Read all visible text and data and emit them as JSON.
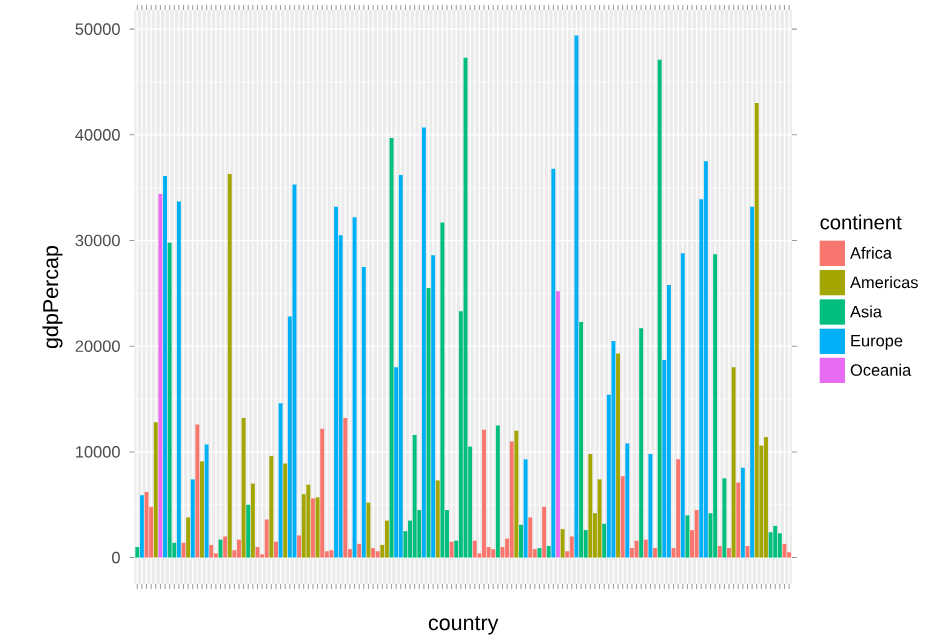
{
  "chart_data": {
    "type": "bar",
    "xlabel": "country",
    "ylabel": "gdpPercap",
    "legend_title": "continent",
    "legend": "right",
    "grid": true,
    "categories": [
      null,
      null,
      null,
      null,
      null,
      null,
      null,
      null,
      null,
      null,
      null,
      null,
      null,
      null,
      null,
      null,
      null,
      null,
      null,
      null,
      null,
      null,
      null,
      null,
      null,
      null,
      null,
      null,
      null,
      null,
      null,
      null,
      null,
      null,
      null,
      null,
      null,
      null,
      null,
      null,
      null,
      null,
      null,
      null,
      null,
      null,
      null,
      null,
      null,
      null,
      null,
      null,
      null,
      null,
      null,
      null,
      null,
      null,
      null,
      null,
      null,
      null,
      null,
      null,
      null,
      null,
      null,
      null,
      null,
      null,
      null,
      null,
      null,
      null,
      null,
      null,
      null,
      null,
      null,
      null,
      null,
      null,
      null,
      null,
      null,
      null,
      null,
      null,
      null,
      null,
      null,
      null,
      null,
      null,
      null,
      null,
      null,
      null,
      null,
      null,
      null,
      null,
      null,
      null,
      null,
      null,
      null,
      null,
      null,
      null,
      null,
      null,
      null,
      null,
      null,
      null,
      null,
      null,
      null,
      null,
      null,
      null,
      null,
      null,
      null,
      null,
      null,
      null,
      null,
      null,
      null,
      null,
      null,
      null,
      null,
      null,
      null,
      null,
      null,
      null,
      null,
      null
    ],
    "ylim": [
      -2500,
      51800
    ],
    "yticks": [
      0,
      10000,
      20000,
      30000,
      40000,
      50000
    ],
    "series": [
      {
        "name": "Africa",
        "color": "#f8766d",
        "values": [
          null,
          null,
          6200,
          4800,
          null,
          null,
          null,
          null,
          null,
          null,
          1400,
          null,
          null,
          12600,
          null,
          null,
          1200,
          400,
          null,
          2000,
          null,
          700,
          1700,
          null,
          null,
          null,
          1000,
          300,
          3600,
          null,
          1500,
          null,
          null,
          null,
          null,
          2100,
          null,
          null,
          5600,
          null,
          12200,
          600,
          700,
          null,
          null,
          13200,
          800,
          null,
          1300,
          null,
          null,
          900,
          600,
          null,
          null,
          null,
          null,
          null,
          null,
          null,
          null,
          null,
          null,
          null,
          null,
          null,
          null,
          null,
          1500,
          null,
          null,
          null,
          null,
          1600,
          400,
          12100,
          1000,
          800,
          null,
          1000,
          1800,
          11000,
          null,
          null,
          null,
          3800,
          800,
          null,
          4800,
          null,
          null,
          null,
          null,
          600,
          2000,
          null,
          null,
          null,
          null,
          null,
          null,
          null,
          null,
          null,
          null,
          7700,
          null,
          900,
          1600,
          null,
          1700,
          null,
          900,
          null,
          null,
          null,
          900,
          9300,
          null,
          null,
          2600,
          4500,
          null,
          null,
          null,
          null,
          1100,
          null,
          900,
          null,
          7100,
          null,
          1100,
          null,
          null,
          null,
          null,
          null,
          null,
          null,
          1300,
          500
        ]
      },
      {
        "name": "Americas",
        "color": "#a3a500",
        "values": [
          null,
          null,
          null,
          null,
          12800,
          null,
          null,
          null,
          null,
          null,
          null,
          3800,
          null,
          null,
          9100,
          null,
          null,
          null,
          null,
          null,
          36300,
          null,
          null,
          13200,
          null,
          7000,
          null,
          null,
          null,
          9600,
          null,
          null,
          8900,
          null,
          null,
          null,
          6000,
          6900,
          null,
          5700,
          null,
          null,
          null,
          null,
          null,
          null,
          null,
          null,
          null,
          null,
          5200,
          null,
          null,
          1200,
          3500,
          null,
          null,
          null,
          null,
          null,
          null,
          null,
          null,
          null,
          null,
          7300,
          null,
          null,
          null,
          null,
          null,
          null,
          null,
          null,
          null,
          null,
          null,
          null,
          null,
          null,
          null,
          null,
          12000,
          null,
          null,
          null,
          null,
          null,
          null,
          null,
          null,
          null,
          2700,
          null,
          null,
          null,
          null,
          null,
          9800,
          4200,
          7400,
          null,
          null,
          null,
          19300,
          null,
          null,
          null,
          null,
          null,
          null,
          null,
          null,
          null,
          null,
          null,
          null,
          null,
          null,
          null,
          null,
          null,
          null,
          null,
          null,
          null,
          null,
          null,
          null,
          18000,
          null,
          null,
          null,
          null,
          43000,
          10600,
          11400,
          null,
          null,
          null,
          null,
          null
        ]
      },
      {
        "name": "Asia",
        "color": "#00bf7d",
        "values": [
          1000,
          null,
          null,
          null,
          null,
          null,
          null,
          29800,
          1400,
          null,
          null,
          null,
          null,
          null,
          null,
          null,
          null,
          null,
          1700,
          null,
          null,
          null,
          null,
          null,
          5000,
          null,
          null,
          null,
          null,
          null,
          null,
          null,
          null,
          null,
          null,
          null,
          null,
          null,
          null,
          null,
          null,
          null,
          null,
          null,
          null,
          null,
          null,
          null,
          null,
          null,
          null,
          null,
          null,
          null,
          null,
          39700,
          null,
          null,
          2500,
          3500,
          11600,
          4500,
          null,
          25500,
          null,
          null,
          31700,
          4500,
          null,
          1600,
          23300,
          47300,
          10500,
          null,
          null,
          null,
          null,
          null,
          12500,
          null,
          null,
          null,
          null,
          3100,
          null,
          null,
          null,
          900,
          null,
          1100,
          null,
          null,
          null,
          null,
          null,
          null,
          22300,
          2600,
          null,
          null,
          null,
          3200,
          null,
          null,
          null,
          null,
          null,
          null,
          null,
          21700,
          null,
          null,
          null,
          47100,
          null,
          null,
          null,
          null,
          null,
          4000,
          null,
          null,
          null,
          null,
          4200,
          28700,
          null,
          7500,
          null,
          null,
          null,
          null,
          null,
          null,
          null,
          null,
          null,
          2400,
          3000,
          2300,
          null,
          null
        ]
      },
      {
        "name": "Europe",
        "color": "#00b0f6",
        "values": [
          null,
          5900,
          null,
          null,
          null,
          null,
          36100,
          null,
          null,
          33700,
          null,
          null,
          7400,
          null,
          null,
          10700,
          null,
          null,
          null,
          null,
          null,
          null,
          null,
          null,
          null,
          null,
          null,
          null,
          null,
          null,
          null,
          14600,
          null,
          22800,
          35300,
          null,
          null,
          null,
          null,
          null,
          null,
          null,
          null,
          33200,
          30500,
          null,
          null,
          32200,
          null,
          27500,
          null,
          null,
          null,
          null,
          null,
          null,
          18000,
          36200,
          null,
          null,
          null,
          null,
          40700,
          null,
          28600,
          null,
          null,
          null,
          null,
          null,
          null,
          null,
          null,
          null,
          null,
          null,
          null,
          null,
          null,
          null,
          null,
          null,
          null,
          null,
          9300,
          null,
          null,
          null,
          null,
          null,
          36800,
          null,
          null,
          null,
          null,
          49400,
          null,
          null,
          null,
          null,
          null,
          null,
          15400,
          20500,
          null,
          null,
          10800,
          null,
          null,
          null,
          null,
          9800,
          null,
          null,
          18700,
          25800,
          null,
          null,
          28800,
          null,
          null,
          null,
          33900,
          37500,
          null,
          null,
          null,
          null,
          null,
          null,
          null,
          8500,
          null,
          33200,
          null,
          null,
          null,
          null,
          null,
          null,
          null,
          null
        ]
      },
      {
        "name": "Oceania",
        "color": "#e76bf3",
        "values": [
          null,
          null,
          null,
          null,
          null,
          34400,
          null,
          null,
          null,
          null,
          null,
          null,
          null,
          null,
          null,
          null,
          null,
          null,
          null,
          null,
          null,
          null,
          null,
          null,
          null,
          null,
          null,
          null,
          null,
          null,
          null,
          null,
          null,
          null,
          null,
          null,
          null,
          null,
          null,
          null,
          null,
          null,
          null,
          null,
          null,
          null,
          null,
          null,
          null,
          null,
          null,
          null,
          null,
          null,
          null,
          null,
          null,
          null,
          null,
          null,
          null,
          null,
          null,
          null,
          null,
          null,
          null,
          null,
          null,
          null,
          null,
          null,
          null,
          null,
          null,
          null,
          null,
          null,
          null,
          null,
          null,
          null,
          null,
          null,
          null,
          null,
          null,
          null,
          null,
          null,
          null,
          25200,
          null,
          null,
          null,
          null,
          null,
          null,
          null,
          null,
          null,
          null,
          null,
          null,
          null,
          null,
          null,
          null,
          null,
          null,
          null,
          null,
          null,
          null,
          null,
          null,
          null,
          null,
          null,
          null,
          null,
          null,
          null,
          null,
          null,
          null,
          null,
          null,
          null,
          null,
          null,
          null,
          null,
          null,
          null,
          null,
          null,
          null,
          null,
          null,
          null,
          null
        ]
      }
    ]
  }
}
